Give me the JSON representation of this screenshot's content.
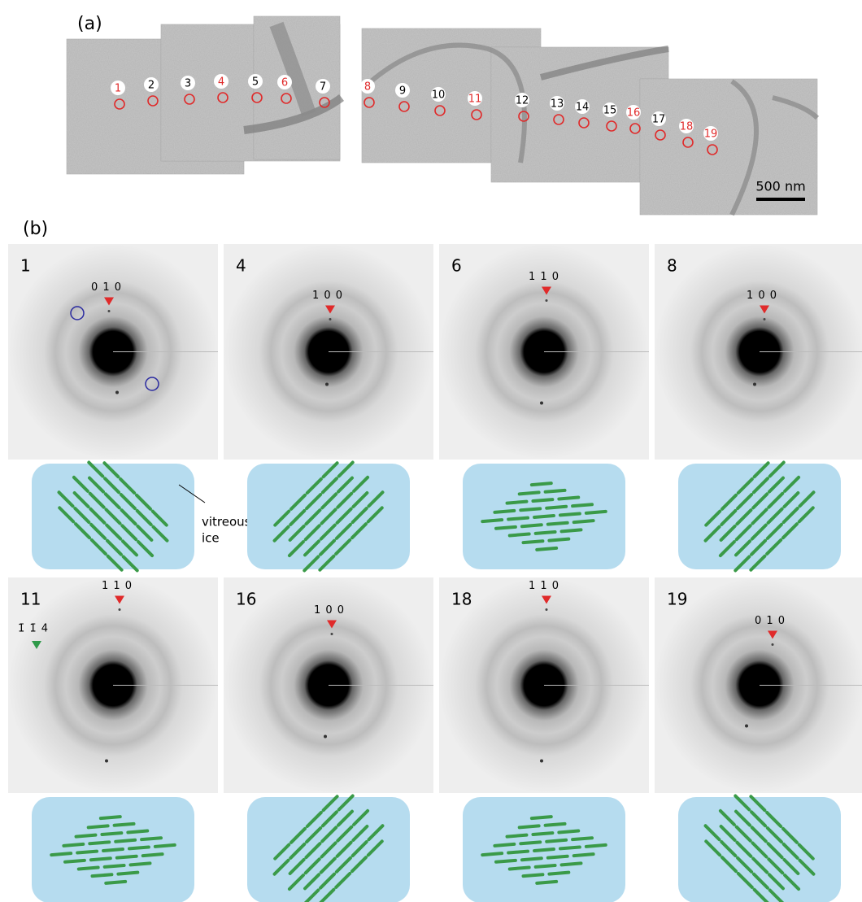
{
  "panel_a": {
    "label": "(a)",
    "positions": [
      {
        "label": "1",
        "color": "#e02a2a"
      },
      {
        "label": "2",
        "color": "#000000"
      },
      {
        "label": "3",
        "color": "#000000"
      },
      {
        "label": "4",
        "color": "#e02a2a"
      },
      {
        "label": "5",
        "color": "#000000"
      },
      {
        "label": "6",
        "color": "#e02a2a"
      },
      {
        "label": "7",
        "color": "#000000"
      },
      {
        "label": "8",
        "color": "#e02a2a"
      },
      {
        "label": "9",
        "color": "#000000"
      },
      {
        "label": "10",
        "color": "#000000"
      },
      {
        "label": "11",
        "color": "#e02a2a"
      },
      {
        "label": "12",
        "color": "#000000"
      },
      {
        "label": "13",
        "color": "#000000"
      },
      {
        "label": "14",
        "color": "#000000"
      },
      {
        "label": "15",
        "color": "#000000"
      },
      {
        "label": "16",
        "color": "#e02a2a"
      },
      {
        "label": "17",
        "color": "#000000"
      },
      {
        "label": "18",
        "color": "#e02a2a"
      },
      {
        "label": "19",
        "color": "#e02a2a"
      }
    ],
    "scale_bar": "500 nm"
  },
  "panel_b": {
    "label": "(b)",
    "patterns": [
      {
        "label": "1",
        "reflection": "0 1 0"
      },
      {
        "label": "4",
        "reflection": "1 0 0"
      },
      {
        "label": "6",
        "reflection": "1 1 0"
      },
      {
        "label": "8",
        "reflection": "1 0 0"
      },
      {
        "label": "11",
        "reflection": "1 1 0",
        "extra_reflection": "1̄ 1̄ 4"
      },
      {
        "label": "16",
        "reflection": "1 0 0"
      },
      {
        "label": "18",
        "reflection": "1 1 0"
      },
      {
        "label": "19",
        "reflection": "0 1 0"
      }
    ],
    "annotation": [
      "vitreous",
      "ice"
    ]
  }
}
